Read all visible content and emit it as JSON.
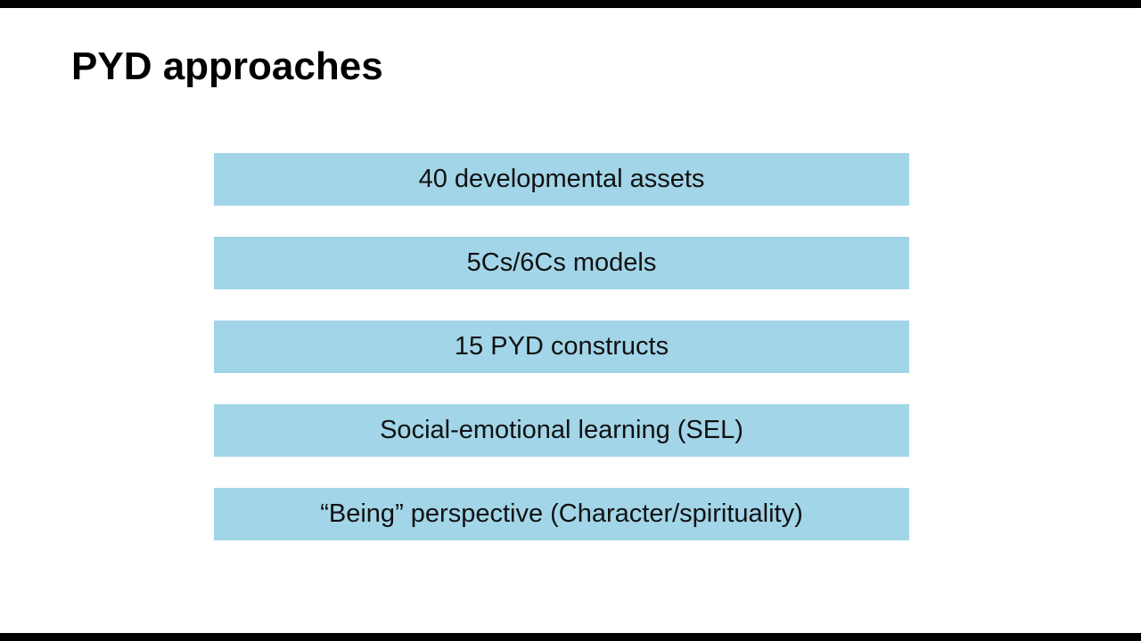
{
  "slide": {
    "title": "PYD approaches",
    "items": [
      {
        "label": "40 developmental assets"
      },
      {
        "label": "5Cs/6Cs models"
      },
      {
        "label": "15 PYD constructs"
      },
      {
        "label": "Social-emotional learning (SEL)"
      },
      {
        "label": "“Being” perspective (Character/spirituality)"
      }
    ],
    "colors": {
      "bar_fill": "#a2d5e8",
      "text": "#111111",
      "background": "#ffffff",
      "letterbox": "#000000"
    }
  }
}
